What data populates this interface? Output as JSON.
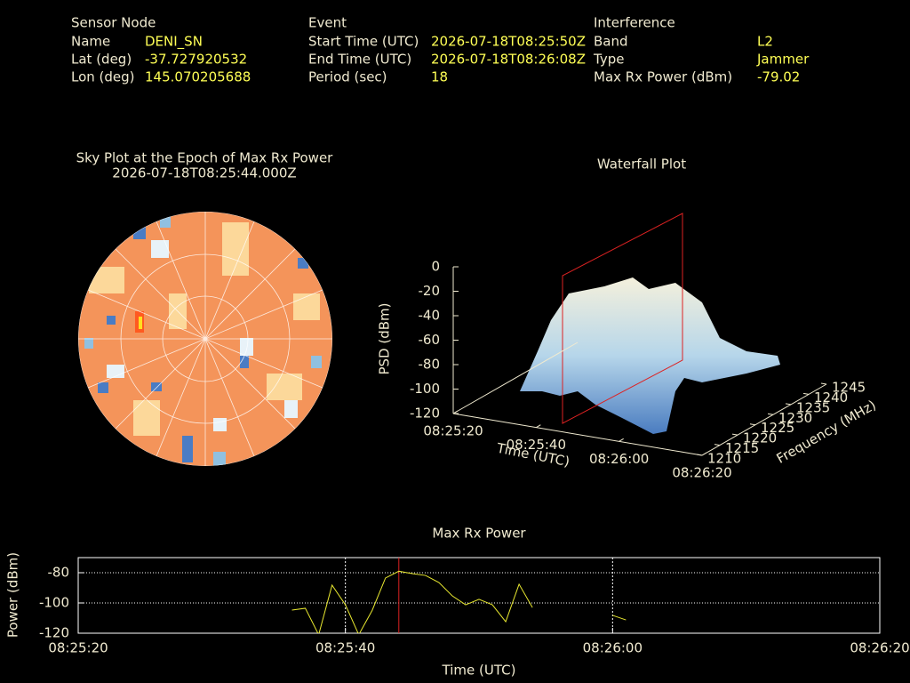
{
  "header": {
    "sensor": {
      "title": "Sensor Node",
      "rows": [
        [
          "Name",
          "DENI_SN"
        ],
        [
          "Lat (deg)",
          "-37.727920532"
        ],
        [
          "Lon (deg)",
          "145.070205688"
        ]
      ]
    },
    "event": {
      "title": "Event",
      "rows": [
        [
          "Start Time (UTC)",
          "2026-07-18T08:25:50Z"
        ],
        [
          "End Time (UTC)",
          "2026-07-18T08:26:08Z"
        ],
        [
          "Period (sec)",
          "18"
        ]
      ]
    },
    "interference": {
      "title": "Interference",
      "rows": [
        [
          "Band",
          "L2"
        ],
        [
          "Type",
          "Jammer"
        ],
        [
          "Max Rx Power (dBm)",
          "-79.02"
        ]
      ]
    }
  },
  "chart_data": [
    {
      "type": "polar-heatmap",
      "title": "Sky Plot at the Epoch of Max Rx Power",
      "subtitle": "2026-07-18T08:25:44.000Z"
    },
    {
      "type": "surface",
      "title": "Waterfall Plot",
      "xlabel": "Time (UTC)",
      "ylabel": "Frequency (MHz)",
      "zlabel": "PSD (dBm)",
      "xlim": [
        "08:25:20",
        "08:26:20"
      ],
      "xticks": [
        "08:25:20",
        "08:25:40",
        "08:26:00",
        "08:26:20"
      ],
      "ylim": [
        1210,
        1245
      ],
      "yticks": [
        1210,
        1215,
        1220,
        1225,
        1230,
        1235,
        1240,
        1245
      ],
      "zlim": [
        -120,
        0
      ],
      "zticks": [
        0,
        -20,
        -40,
        -60,
        -80,
        -100,
        -120
      ]
    },
    {
      "type": "line",
      "title": "Max Rx Power",
      "xlabel": "Time (UTC)",
      "ylabel": "Power (dBm)",
      "color": "#e8e830",
      "x": [
        "08:25:36",
        "08:25:37",
        "08:25:38",
        "08:25:39",
        "08:25:40",
        "08:25:41",
        "08:25:42",
        "08:25:43",
        "08:25:44",
        "08:25:45",
        "08:25:46",
        "08:25:47",
        "08:25:48",
        "08:25:49",
        "08:25:50",
        "08:25:51",
        "08:25:52",
        "08:25:53",
        "08:25:54",
        "08:25:55",
        "08:25:56",
        "08:25:57",
        "08:25:58",
        "08:25:59",
        "08:26:00",
        "08:26:01"
      ],
      "values": [
        -104.7,
        -103.5,
        -121,
        -88.2,
        -101.2,
        -121,
        -105,
        -83.5,
        -79.02,
        -80.6,
        -81.8,
        -86.5,
        -95.3,
        -101.2,
        -97.6,
        -101.2,
        -112.4,
        -87.6,
        -103,
        null,
        null,
        null,
        null,
        null,
        -108.2,
        -111.2
      ],
      "marker_x": "08:25:44",
      "marker_color": "#dd2222",
      "xlim": [
        "08:25:20",
        "08:26:20"
      ],
      "xticks": [
        "08:25:20",
        "08:25:40",
        "08:26:00",
        "08:26:20"
      ],
      "xgrid": [
        "08:25:40",
        "08:26:00"
      ],
      "ylim": [
        -120,
        -70
      ],
      "yticks": [
        -80,
        -100,
        -120
      ],
      "ygrid": [
        -80,
        -100
      ]
    }
  ]
}
